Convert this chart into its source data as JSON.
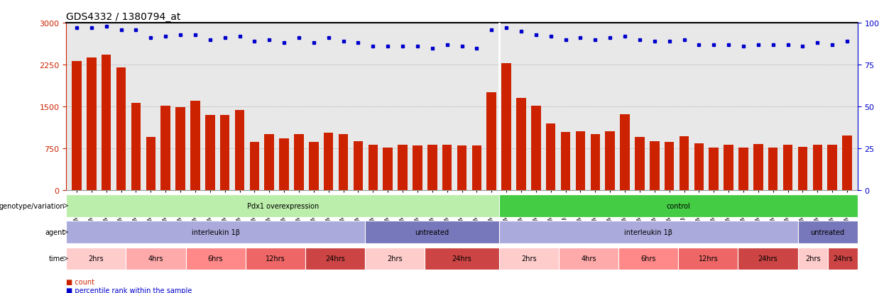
{
  "title": "GDS4332 / 1380794_at",
  "samples": [
    "GSM998740",
    "GSM998753",
    "GSM998766",
    "GSM998774",
    "GSM998729",
    "GSM998754",
    "GSM998767",
    "GSM998775",
    "GSM998741",
    "GSM998755",
    "GSM998768",
    "GSM998776",
    "GSM998730",
    "GSM998742",
    "GSM998747",
    "GSM998777",
    "GSM998731",
    "GSM998748",
    "GSM998756",
    "GSM998769",
    "GSM998732",
    "GSM998749",
    "GSM998757",
    "GSM998778",
    "GSM998733",
    "GSM998758",
    "GSM998770",
    "GSM998779",
    "GSM998734",
    "GSM998743",
    "GSM998750",
    "GSM998735",
    "GSM998760",
    "GSM998782",
    "GSM998744",
    "GSM998751",
    "GSM998761",
    "GSM998771",
    "GSM998736",
    "GSM998745",
    "GSM998762",
    "GSM998781",
    "GSM998752",
    "GSM998763",
    "GSM998772",
    "GSM998738",
    "GSM998764",
    "GSM998773",
    "GSM998783",
    "GSM998739",
    "GSM998746",
    "GSM998765",
    "GSM998784"
  ],
  "bar_values": [
    2310,
    2380,
    2430,
    2200,
    1570,
    950,
    1510,
    1490,
    1600,
    1350,
    1350,
    1440,
    870,
    1000,
    930,
    1000,
    870,
    1030,
    1000,
    880,
    820,
    760,
    820,
    800,
    810,
    820,
    800,
    800,
    1760,
    2280,
    1660,
    1510,
    1190,
    1040,
    1060,
    1010,
    1060,
    1360,
    960,
    880,
    870,
    970,
    840,
    770,
    810,
    760,
    830,
    760,
    810,
    780,
    820,
    810,
    980
  ],
  "percentile_values": [
    97,
    97,
    98,
    96,
    96,
    91,
    92,
    93,
    93,
    90,
    91,
    92,
    89,
    90,
    88,
    91,
    88,
    91,
    89,
    88,
    86,
    86,
    86,
    86,
    85,
    87,
    86,
    85,
    96,
    97,
    95,
    93,
    92,
    90,
    91,
    90,
    91,
    92,
    90,
    89,
    89,
    90,
    87,
    87,
    87,
    86,
    87,
    87,
    87,
    86,
    88,
    87,
    89
  ],
  "bar_color": "#cc2200",
  "dot_color": "#0000cc",
  "ylim_left": [
    0,
    3000
  ],
  "ylim_right": [
    0,
    100
  ],
  "yticks_left": [
    0,
    750,
    1500,
    2250,
    3000
  ],
  "yticks_right": [
    0,
    25,
    50,
    75,
    100
  ],
  "bg_color": "#e8e8e8",
  "genotype_segments": [
    {
      "text": "Pdx1 overexpression",
      "start": 0,
      "end": 29,
      "color": "#bbeeaa"
    },
    {
      "text": "control",
      "start": 29,
      "end": 53,
      "color": "#44cc44"
    }
  ],
  "agent_segments": [
    {
      "text": "interleukin 1β",
      "start": 0,
      "end": 20,
      "color": "#aaaadd"
    },
    {
      "text": "untreated",
      "start": 20,
      "end": 29,
      "color": "#7777bb"
    },
    {
      "text": "interleukin 1β",
      "start": 29,
      "end": 49,
      "color": "#aaaadd"
    },
    {
      "text": "untreated",
      "start": 49,
      "end": 53,
      "color": "#7777bb"
    }
  ],
  "time_segments": [
    {
      "text": "2hrs",
      "start": 0,
      "end": 4,
      "color": "#ffcccc"
    },
    {
      "text": "4hrs",
      "start": 4,
      "end": 8,
      "color": "#ffaaaa"
    },
    {
      "text": "6hrs",
      "start": 8,
      "end": 12,
      "color": "#ff8888"
    },
    {
      "text": "12hrs",
      "start": 12,
      "end": 16,
      "color": "#ee6666"
    },
    {
      "text": "24hrs",
      "start": 16,
      "end": 20,
      "color": "#cc4444"
    },
    {
      "text": "2hrs",
      "start": 20,
      "end": 24,
      "color": "#ffcccc"
    },
    {
      "text": "24hrs",
      "start": 24,
      "end": 29,
      "color": "#cc4444"
    },
    {
      "text": "2hrs",
      "start": 29,
      "end": 33,
      "color": "#ffcccc"
    },
    {
      "text": "4hrs",
      "start": 33,
      "end": 37,
      "color": "#ffaaaa"
    },
    {
      "text": "6hrs",
      "start": 37,
      "end": 41,
      "color": "#ff8888"
    },
    {
      "text": "12hrs",
      "start": 41,
      "end": 45,
      "color": "#ee6666"
    },
    {
      "text": "24hrs",
      "start": 45,
      "end": 49,
      "color": "#cc4444"
    },
    {
      "text": "2hrs",
      "start": 49,
      "end": 51,
      "color": "#ffcccc"
    },
    {
      "text": "24hrs",
      "start": 51,
      "end": 53,
      "color": "#cc4444"
    }
  ],
  "label_fontsize": 7,
  "tick_fontsize": 5.5,
  "title_fontsize": 10,
  "bar_color_legend": "#cc2200",
  "dot_color_legend": "#0000cc"
}
